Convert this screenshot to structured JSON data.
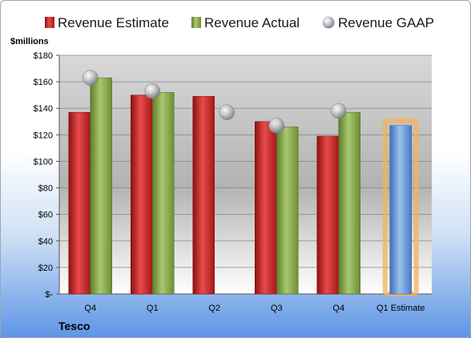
{
  "chart_data": {
    "type": "bar",
    "company": "Tesco",
    "unit_label": "$millions",
    "categories": [
      "Q4",
      "Q1",
      "Q2",
      "Q3",
      "Q4",
      "Q1 Estimate"
    ],
    "series": [
      {
        "name": "Revenue Estimate",
        "type": "bar",
        "color": "#d42a2a",
        "values": [
          137,
          150,
          149,
          130,
          119,
          null
        ]
      },
      {
        "name": "Revenue Actual",
        "type": "bar",
        "color": "#8db04e",
        "values": [
          163,
          152,
          null,
          126,
          137,
          null
        ]
      },
      {
        "name": "Revenue GAAP",
        "type": "marker",
        "color": "#b9bdc4",
        "values": [
          163,
          153,
          137,
          127,
          138,
          null
        ]
      },
      {
        "name": "Q1 Estimate",
        "type": "bar",
        "color": "#6f9fdc",
        "highlight": "#f5b25a",
        "values": [
          null,
          null,
          null,
          null,
          null,
          127
        ]
      }
    ],
    "yticks": [
      "$-",
      "$20",
      "$40",
      "$60",
      "$80",
      "$100",
      "$120",
      "$140",
      "$160",
      "$180"
    ],
    "ylim": [
      0,
      180
    ],
    "grid": true,
    "legend_position": "top"
  }
}
